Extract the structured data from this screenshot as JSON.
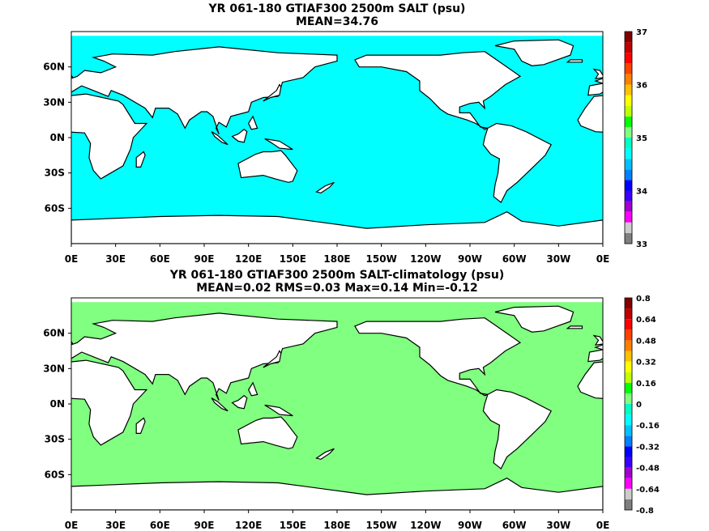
{
  "panels": [
    {
      "title_line1": "YR 061-180 GTIAF300 2500m SALT (psu)",
      "title_line2": "MEAN=34.76",
      "ocean_color": "#00ffff",
      "colorbar": {
        "labels": [
          "37",
          "36",
          "35",
          "34",
          "33"
        ],
        "colors": [
          "#7f7f7f",
          "#cccccc",
          "#ff00ff",
          "#a000d0",
          "#3c00ff",
          "#0000ff",
          "#0080ff",
          "#00c0ff",
          "#00ffff",
          "#00ffc0",
          "#80ff80",
          "#00ff00",
          "#c0ff00",
          "#ffff00",
          "#ffc000",
          "#ff8000",
          "#ff4000",
          "#ff0000",
          "#c00000",
          "#800000"
        ]
      }
    },
    {
      "title_line1": "YR 061-180 GTIAF300 2500m SALT-climatology (psu)",
      "title_line2": "MEAN=0.02   RMS=0.03   Max=0.14   Min=-0.12",
      "ocean_color": "#80ff80",
      "colorbar": {
        "labels": [
          "0.8",
          "0.64",
          "0.48",
          "0.32",
          "0.16",
          "0",
          "-0.16",
          "-0.32",
          "-0.48",
          "-0.64",
          "-0.8"
        ],
        "colors": [
          "#7f7f7f",
          "#cccccc",
          "#ff00ff",
          "#a000d0",
          "#3c00ff",
          "#0000ff",
          "#0080ff",
          "#00c0ff",
          "#00ffff",
          "#00ffc0",
          "#80ff80",
          "#00ff00",
          "#c0ff00",
          "#ffff00",
          "#ffc000",
          "#ff8000",
          "#ff4000",
          "#ff0000",
          "#c00000",
          "#800000"
        ]
      }
    }
  ],
  "x_ticks": [
    "0E",
    "30E",
    "60E",
    "90E",
    "120E",
    "150E",
    "180E",
    "150W",
    "120W",
    "90W",
    "60W",
    "30W",
    "0E"
  ],
  "y_ticks": [
    "60N",
    "30N",
    "0N",
    "30S",
    "60S"
  ]
}
